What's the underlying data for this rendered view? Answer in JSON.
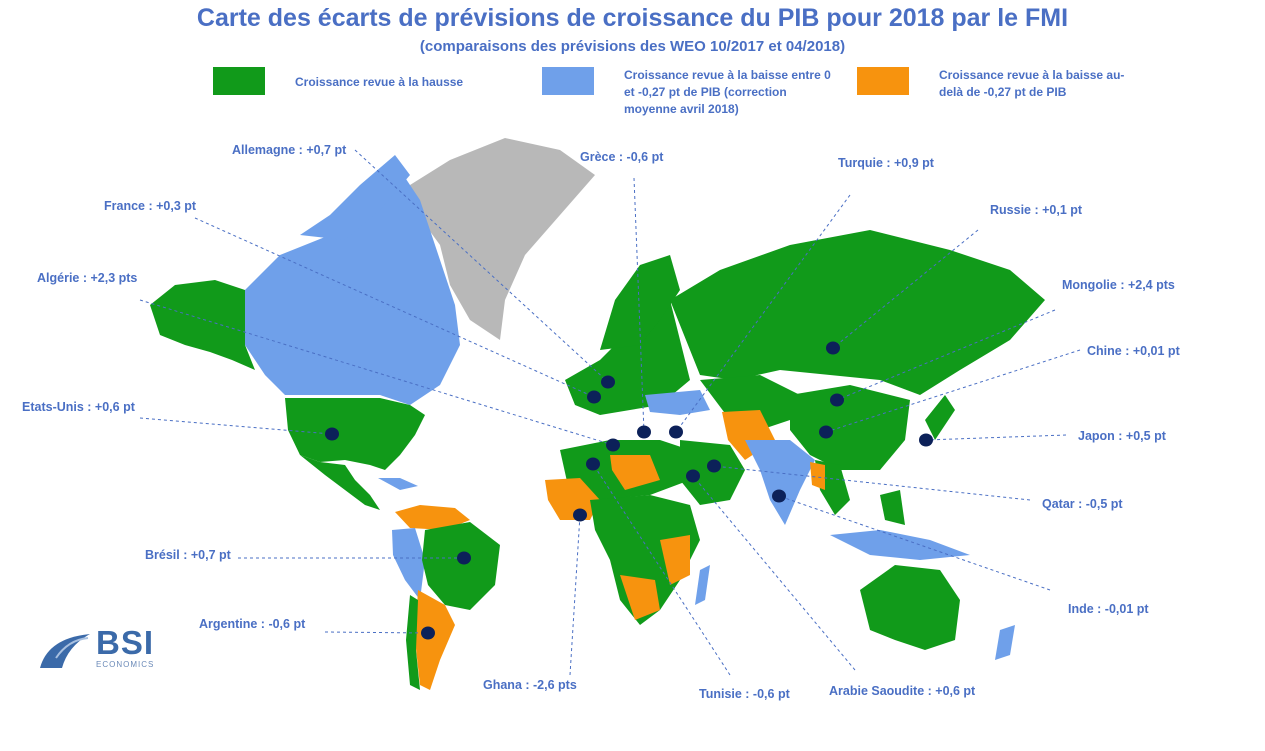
{
  "header": {
    "title": "Carte des écarts de prévisions de croissance du PIB pour 2018 par le FMI",
    "subtitle": "(comparaisons des prévisions des WEO 10/2017 et 04/2018)"
  },
  "legend": [
    {
      "label": "Croissance revue à la hausse",
      "color": "#119a1a"
    },
    {
      "label": "Croissance revue à la baisse entre 0 et -0,27 pt de PIB (correction moyenne avril 2018)",
      "label_lines": [
        "Croissance revue à la baisse entre 0",
        "et -0,27 pt de PIB (correction",
        "moyenne avril 2018)"
      ],
      "color": "#6fa0ea"
    },
    {
      "label": "Croissance revue à la baisse au-delà de -0,27 pt de PIB",
      "label_lines": [
        "Croissance revue à la baisse au-",
        "delà de -0,27 pt de PIB"
      ],
      "color": "#f7930e"
    }
  ],
  "colors": {
    "up": "#119a1a",
    "down_small": "#6fa0ea",
    "down_large": "#f7930e",
    "no_data": "#b8b8b8",
    "marker": "#0c2159",
    "text": "#4a6fc4"
  },
  "annotations": {
    "allemagne": "Allemagne : +0,7 pt",
    "grece": "Grèce : -0,6 pt",
    "turquie": "Turquie : +0,9 pt",
    "france": "France : +0,3 pt",
    "russie": "Russie : +0,1 pt",
    "algerie": "Algérie : +2,3 pts",
    "mongolie": "Mongolie : +2,4 pts",
    "chine": "Chine : +0,01 pt",
    "etats_unis": "Etats-Unis : +0,6 pt",
    "japon": "Japon : +0,5 pt",
    "qatar": "Qatar : -0,5 pt",
    "bresil": "Brésil : +0,7 pt",
    "inde": "Inde : -0,01 pt",
    "argentine": "Argentine : -0,6 pt",
    "ghana": "Ghana : -2,6 pts",
    "tunisie": "Tunisie : -0,6 pt",
    "arabie_saoudite": "Arabie Saoudite : +0,6 pt"
  },
  "logo": {
    "name": "BSI",
    "sub": "ECONOMICS"
  }
}
